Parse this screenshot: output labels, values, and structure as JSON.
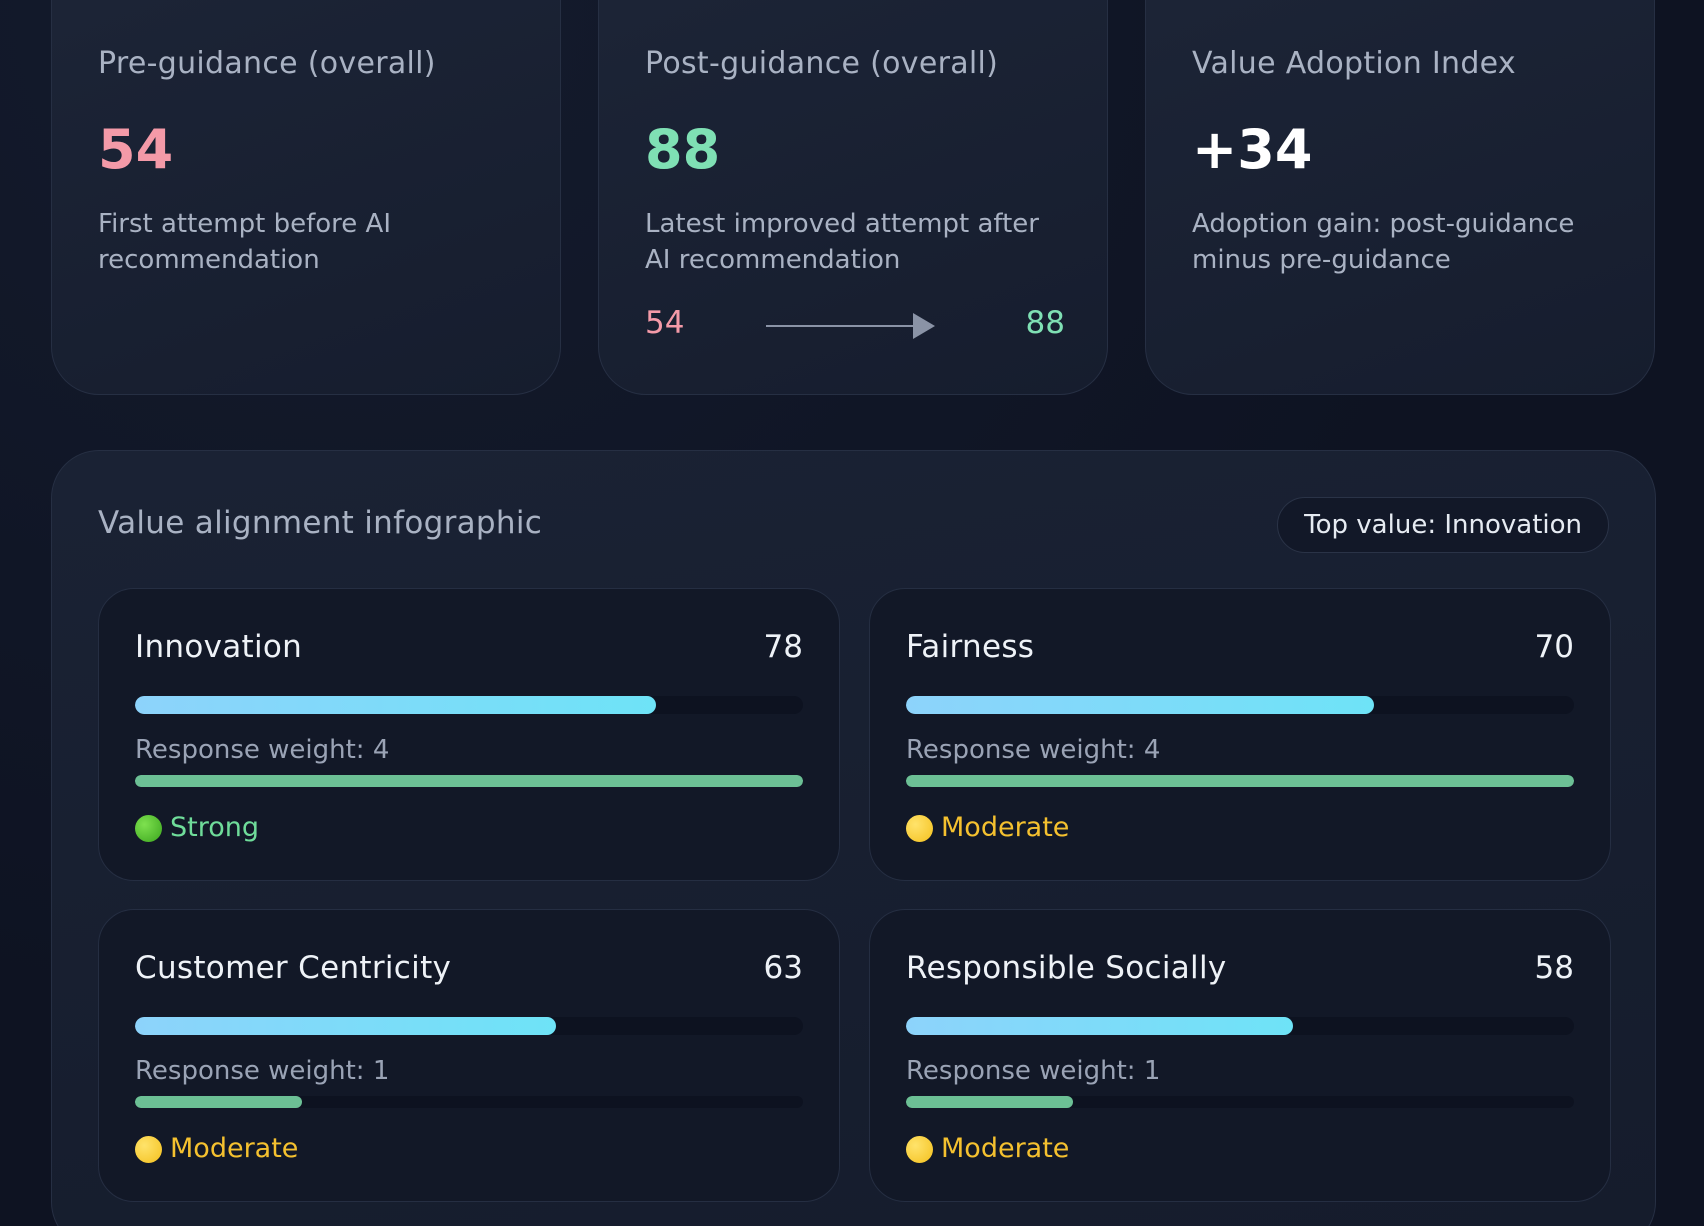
{
  "metrics": {
    "pre": {
      "title": "Pre-guidance (overall)",
      "value": "54",
      "desc": "First attempt before AI recommendation"
    },
    "post": {
      "title": "Post-guidance (overall)",
      "value": "88",
      "desc": "Latest improved attempt after AI recommendation",
      "from": "54",
      "to": "88"
    },
    "index": {
      "title": "Value Adoption Index",
      "value": "+34",
      "desc": "Adoption gain: post-guidance minus pre-guidance"
    }
  },
  "infographic": {
    "title": "Value alignment infographic",
    "top_badge": "Top value: Innovation",
    "values": [
      {
        "name": "Innovation",
        "score": "78",
        "score_fraction": 0.78,
        "weight_label": "Response weight: 4",
        "weight_fraction": 1.0,
        "status": "Strong",
        "status_icon": "green-circle-icon"
      },
      {
        "name": "Fairness",
        "score": "70",
        "score_fraction": 0.7,
        "weight_label": "Response weight: 4",
        "weight_fraction": 1.0,
        "status": "Moderate",
        "status_icon": "yellow-circle-icon"
      },
      {
        "name": "Customer Centricity",
        "score": "63",
        "score_fraction": 0.63,
        "weight_label": "Response weight: 1",
        "weight_fraction": 0.25,
        "status": "Moderate",
        "status_icon": "yellow-circle-icon"
      },
      {
        "name": "Responsible Socially",
        "score": "58",
        "score_fraction": 0.58,
        "weight_label": "Response weight: 1",
        "weight_fraction": 0.25,
        "status": "Moderate",
        "status_icon": "yellow-circle-icon"
      }
    ]
  },
  "colors": {
    "pre_value": "#f49aa8",
    "post_value": "#7fe0b4",
    "strong": "#6fdc9a",
    "moderate": "#f5c12f",
    "score_bar": "#8dd3fb",
    "weight_bar": "#6cc095"
  }
}
